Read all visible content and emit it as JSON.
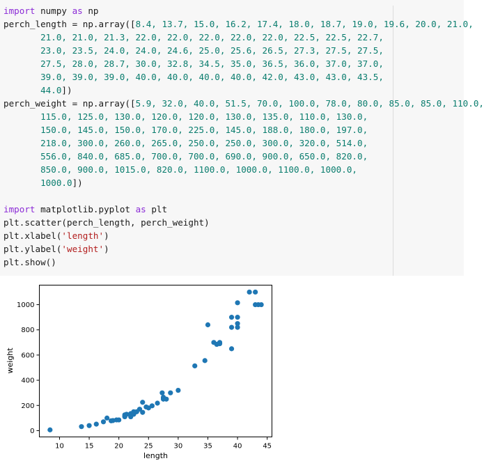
{
  "code_cell": {
    "lines": [
      [
        {
          "t": "import",
          "c": "kw"
        },
        {
          "t": " numpy ",
          "c": "p"
        },
        {
          "t": "as",
          "c": "kw"
        },
        {
          "t": " np",
          "c": "p"
        }
      ],
      [
        {
          "t": "perch_length = np.array([",
          "c": "p"
        },
        {
          "t": "8.4, 13.7, 15.0, 16.2, 17.4, 18.0, 18.7, 19.0, 19.6, 20.0, 21.0,",
          "c": "num"
        }
      ],
      [
        {
          "t": "       ",
          "c": "p"
        },
        {
          "t": "21.0, 21.0, 21.3, 22.0, 22.0, 22.0, 22.0, 22.0, 22.5, 22.5, 22.7,",
          "c": "num"
        }
      ],
      [
        {
          "t": "       ",
          "c": "p"
        },
        {
          "t": "23.0, 23.5, 24.0, 24.0, 24.6, 25.0, 25.6, 26.5, 27.3, 27.5, 27.5,",
          "c": "num"
        }
      ],
      [
        {
          "t": "       ",
          "c": "p"
        },
        {
          "t": "27.5, 28.0, 28.7, 30.0, 32.8, 34.5, 35.0, 36.5, 36.0, 37.0, 37.0,",
          "c": "num"
        }
      ],
      [
        {
          "t": "       ",
          "c": "p"
        },
        {
          "t": "39.0, 39.0, 39.0, 40.0, 40.0, 40.0, 40.0, 42.0, 43.0, 43.0, 43.5,",
          "c": "num"
        }
      ],
      [
        {
          "t": "       ",
          "c": "p"
        },
        {
          "t": "44.0",
          "c": "num"
        },
        {
          "t": "])",
          "c": "p"
        }
      ],
      [
        {
          "t": "perch_weight = np.array([",
          "c": "p"
        },
        {
          "t": "5.9, 32.0, 40.0, 51.5, 70.0, 100.0, 78.0, 80.0, 85.0, 85.0, 110.0,",
          "c": "num"
        }
      ],
      [
        {
          "t": "       ",
          "c": "p"
        },
        {
          "t": "115.0, 125.0, 130.0, 120.0, 120.0, 130.0, 135.0, 110.0, 130.0,",
          "c": "num"
        }
      ],
      [
        {
          "t": "       ",
          "c": "p"
        },
        {
          "t": "150.0, 145.0, 150.0, 170.0, 225.0, 145.0, 188.0, 180.0, 197.0,",
          "c": "num"
        }
      ],
      [
        {
          "t": "       ",
          "c": "p"
        },
        {
          "t": "218.0, 300.0, 260.0, 265.0, 250.0, 250.0, 300.0, 320.0, 514.0,",
          "c": "num"
        }
      ],
      [
        {
          "t": "       ",
          "c": "p"
        },
        {
          "t": "556.0, 840.0, 685.0, 700.0, 700.0, 690.0, 900.0, 650.0, 820.0,",
          "c": "num"
        }
      ],
      [
        {
          "t": "       ",
          "c": "p"
        },
        {
          "t": "850.0, 900.0, 1015.0, 820.0, 1100.0, 1000.0, 1100.0, 1000.0,",
          "c": "num"
        }
      ],
      [
        {
          "t": "       ",
          "c": "p"
        },
        {
          "t": "1000.0",
          "c": "num"
        },
        {
          "t": "])",
          "c": "p"
        }
      ],
      [
        {
          "t": "",
          "c": "p"
        }
      ],
      [
        {
          "t": "import",
          "c": "kw"
        },
        {
          "t": " matplotlib.pyplot ",
          "c": "p"
        },
        {
          "t": "as",
          "c": "kw"
        },
        {
          "t": " plt",
          "c": "p"
        }
      ],
      [
        {
          "t": "plt.scatter(perch_length, perch_weight)",
          "c": "p"
        }
      ],
      [
        {
          "t": "plt.xlabel(",
          "c": "p"
        },
        {
          "t": "'length'",
          "c": "str"
        },
        {
          "t": ")",
          "c": "p"
        }
      ],
      [
        {
          "t": "plt.ylabel(",
          "c": "p"
        },
        {
          "t": "'weight'",
          "c": "str"
        },
        {
          "t": ")",
          "c": "p"
        }
      ],
      [
        {
          "t": "plt.show()",
          "c": "p"
        }
      ]
    ]
  },
  "colors": {
    "cell_background": "#f7f7f7",
    "keyword": "#8b2bd6",
    "number": "#0a7d6e",
    "string": "#b21d1d",
    "marker": "#1f77b4"
  },
  "chart_data": {
    "type": "scatter",
    "xlabel": "length",
    "ylabel": "weight",
    "xlim": [
      6.6,
      45.8
    ],
    "ylim": [
      -50,
      1155
    ],
    "xticks": [
      10,
      15,
      20,
      25,
      30,
      35,
      40,
      45
    ],
    "yticks": [
      0,
      200,
      400,
      600,
      800,
      1000
    ],
    "grid": false,
    "legend": "none",
    "x": [
      8.4,
      13.7,
      15.0,
      16.2,
      17.4,
      18.0,
      18.7,
      19.0,
      19.6,
      20.0,
      21.0,
      21.0,
      21.0,
      21.3,
      22.0,
      22.0,
      22.0,
      22.0,
      22.0,
      22.5,
      22.5,
      22.7,
      23.0,
      23.5,
      24.0,
      24.0,
      24.6,
      25.0,
      25.6,
      26.5,
      27.3,
      27.5,
      27.5,
      27.5,
      28.0,
      28.7,
      30.0,
      32.8,
      34.5,
      35.0,
      36.5,
      36.0,
      37.0,
      37.0,
      39.0,
      39.0,
      39.0,
      40.0,
      40.0,
      40.0,
      40.0,
      42.0,
      43.0,
      43.0,
      43.5,
      44.0
    ],
    "y": [
      5.9,
      32.0,
      40.0,
      51.5,
      70.0,
      100.0,
      78.0,
      80.0,
      85.0,
      85.0,
      110.0,
      115.0,
      125.0,
      130.0,
      120.0,
      120.0,
      130.0,
      135.0,
      110.0,
      130.0,
      150.0,
      145.0,
      150.0,
      170.0,
      225.0,
      145.0,
      188.0,
      180.0,
      197.0,
      218.0,
      300.0,
      260.0,
      265.0,
      250.0,
      250.0,
      300.0,
      320.0,
      514.0,
      556.0,
      840.0,
      685.0,
      700.0,
      700.0,
      690.0,
      900.0,
      650.0,
      820.0,
      850.0,
      900.0,
      1015.0,
      820.0,
      1100.0,
      1000.0,
      1100.0,
      1000.0,
      1000.0
    ]
  }
}
